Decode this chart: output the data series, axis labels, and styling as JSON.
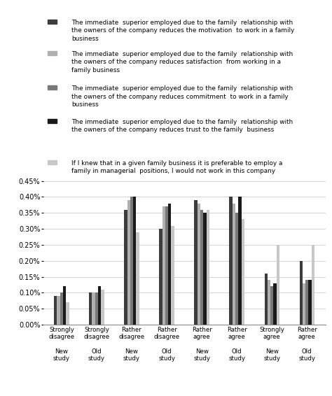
{
  "series": [
    {
      "label": "The immediate  superior employed due to the family  relationship with\nthe owners of the company reduces the motivation  to work in a family\nbusiness",
      "color": "#3c3c3c",
      "values": [
        0.09,
        0.1,
        0.36,
        0.3,
        0.39,
        0.4,
        0.16,
        0.2
      ]
    },
    {
      "label": "The immediate  superior employed due to the family  relationship with\nthe owners of the company reduces satisfaction  from working in a\nfamily business",
      "color": "#b0b0b0",
      "values": [
        0.09,
        0.1,
        0.39,
        0.37,
        0.38,
        0.38,
        0.14,
        0.13
      ]
    },
    {
      "label": "The immediate  superior employed due to the family  relationship with\nthe owners of the company reduces commitment  to work in a family\nbusiness",
      "color": "#787878",
      "values": [
        0.1,
        0.1,
        0.4,
        0.37,
        0.36,
        0.35,
        0.12,
        0.14
      ]
    },
    {
      "label": "The immediate  superior employed due to the family  relationship with\nthe owners of the company reduces trust to the family  business",
      "color": "#1a1a1a",
      "values": [
        0.12,
        0.12,
        0.4,
        0.38,
        0.35,
        0.4,
        0.13,
        0.14
      ]
    },
    {
      "label": "If I knew that in a given family business it is preferable to employ a\nfamily in managerial  positions, I would not work in this company",
      "color": "#c8c8c8",
      "values": [
        0.07,
        0.11,
        0.29,
        0.31,
        0.36,
        0.33,
        0.25,
        0.25
      ]
    }
  ],
  "group_labels": [
    "Strongly\ndisagree\n\nNew\nstudy",
    "Strongly\ndisagree\n\nOld\nstudy",
    "Rather\ndisagree\n\nNew\nstudy",
    "Rather\ndisagree\n\nOld\nstudy",
    "Rather\nagree\n\nNew\nstudy",
    "Rather\nagree\n\nOld\nstudy",
    "Strongly\nagree\n\nNew\nstudy",
    "Rather\nagree\n\nOld\nstudy"
  ],
  "ytick_labels": [
    "0.00%",
    "0.05%",
    "0.10%",
    "0.15%",
    "0.20%",
    "0.25%",
    "0.30%",
    "0.35%",
    "0.40%",
    "0.45%"
  ],
  "background_color": "#ffffff",
  "legend_colors": [
    "#3c3c3c",
    "#b0b0b0",
    "#787878",
    "#1a1a1a",
    "#c8c8c8"
  ],
  "legend_texts": [
    "The immediate  superior employed due to the family  relationship with\nthe owners of the company reduces the motivation  to work in a family\nbusiness",
    "The immediate  superior employed due to the family  relationship with\nthe owners of the company reduces satisfaction  from working in a\nfamily business",
    "The immediate  superior employed due to the family  relationship with\nthe owners of the company reduces commitment  to work in a family\nbusiness",
    "The immediate  superior employed due to the family  relationship with\nthe owners of the company reduces trust to the family  business",
    "If I knew that in a given family business it is preferable to employ a\nfamily in managerial  positions, I would not work in this company"
  ]
}
